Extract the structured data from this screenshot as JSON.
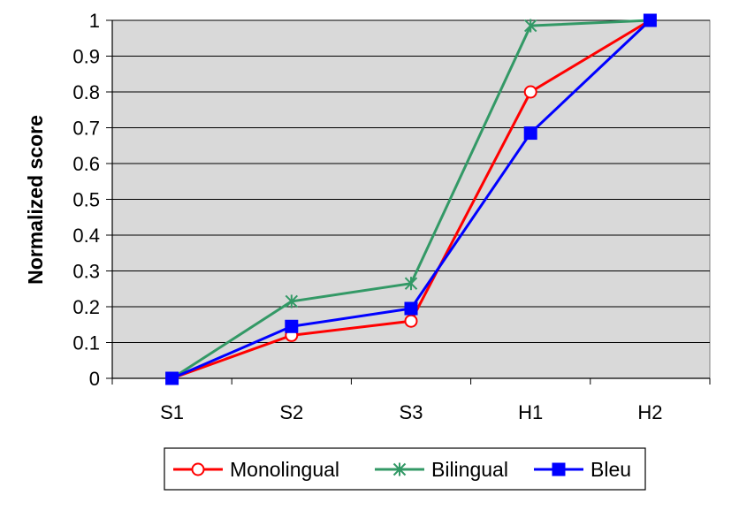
{
  "chart_data": {
    "type": "line",
    "title": "",
    "xlabel": "",
    "ylabel": "Normalized score",
    "categories": [
      "S1",
      "S2",
      "S3",
      "H1",
      "H2"
    ],
    "ylim": [
      0,
      1
    ],
    "yticks": [
      "0",
      "0.1",
      "0.2",
      "0.3",
      "0.4",
      "0.5",
      "0.6",
      "0.7",
      "0.8",
      "0.9",
      "1"
    ],
    "grid": true,
    "plot_background": "#D9D9D9",
    "legend": "bottom",
    "series": [
      {
        "name": "Monolingual",
        "color": "#FF0000",
        "marker": "open-circle",
        "values": [
          0,
          0.12,
          0.16,
          0.8,
          1.0
        ]
      },
      {
        "name": "Bilingual",
        "color": "#339966",
        "marker": "asterisk",
        "values": [
          0,
          0.215,
          0.265,
          0.985,
          1.0
        ]
      },
      {
        "name": "Bleu",
        "color": "#0000FF",
        "marker": "filled-square",
        "values": [
          0,
          0.145,
          0.195,
          0.685,
          1.0
        ]
      }
    ]
  }
}
